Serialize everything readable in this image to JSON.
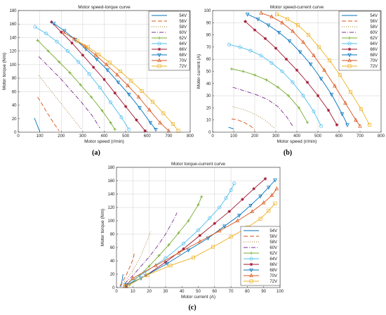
{
  "panels": [
    "(a)",
    "(b)",
    "(c)"
  ],
  "chart_data": [
    {
      "type": "line",
      "title": "Motor speed-torque curve",
      "xlabel": "Motor speed (r/min)",
      "ylabel": "Motor torque (Nm)",
      "xlim": [
        0,
        800
      ],
      "ylim": [
        0,
        180
      ],
      "xticks": [
        "0",
        "100",
        "200",
        "300",
        "400",
        "500",
        "600",
        "700",
        "800"
      ],
      "yticks": [
        "0",
        "20",
        "40",
        "60",
        "80",
        "100",
        "120",
        "140",
        "160",
        "180"
      ],
      "grid": "partial",
      "legend": "top-right",
      "series": [
        {
          "name": "54V",
          "x": [
            75,
            80,
            85,
            90,
            95,
            100
          ],
          "y": [
            21,
            17,
            13,
            9,
            5,
            1
          ]
        },
        {
          "name": "56V",
          "x": [
            90,
            110,
            130,
            150,
            170,
            190
          ],
          "y": [
            52,
            42,
            31,
            21,
            11,
            2
          ]
        },
        {
          "name": "58V",
          "x": [
            95,
            130,
            165,
            200,
            235,
            270,
            295
          ],
          "y": [
            84,
            70,
            56,
            42,
            28,
            14,
            4
          ]
        },
        {
          "name": "60V",
          "x": [
            95,
            145,
            195,
            245,
            295,
            345,
            380
          ],
          "y": [
            112,
            96,
            80,
            62,
            44,
            24,
            6
          ]
        },
        {
          "name": "62V",
          "x": [
            90,
            140,
            190,
            240,
            290,
            340,
            390,
            430,
            450
          ],
          "y": [
            136,
            120,
            104,
            88,
            70,
            52,
            32,
            14,
            4
          ]
        },
        {
          "name": "64V",
          "x": [
            78,
            130,
            180,
            230,
            280,
            330,
            380,
            430,
            480,
            515
          ],
          "y": [
            156,
            146,
            134,
            120,
            104,
            86,
            66,
            44,
            22,
            4
          ]
        },
        {
          "name": "66V",
          "x": [
            155,
            200,
            250,
            300,
            350,
            400,
            450,
            500,
            550,
            590
          ],
          "y": [
            163,
            148,
            132,
            114,
            96,
            78,
            58,
            38,
            18,
            2
          ]
        },
        {
          "name": "68V",
          "x": [
            165,
            215,
            265,
            315,
            365,
            415,
            465,
            515,
            565,
            615,
            640
          ],
          "y": [
            161,
            150,
            137,
            123,
            108,
            92,
            74,
            56,
            36,
            14,
            4
          ]
        },
        {
          "name": "70V",
          "x": [
            210,
            260,
            310,
            360,
            410,
            460,
            510,
            560,
            610,
            660,
            700
          ],
          "y": [
            148,
            138,
            127,
            114,
            100,
            85,
            69,
            52,
            33,
            14,
            2
          ]
        },
        {
          "name": "72V",
          "x": [
            275,
            325,
            375,
            425,
            475,
            525,
            575,
            625,
            675,
            720,
            745
          ],
          "y": [
            135,
            126,
            115,
            103,
            90,
            76,
            61,
            45,
            28,
            12,
            2
          ]
        }
      ]
    },
    {
      "type": "line",
      "title": "Motor speed-current curve",
      "xlabel": "Motor speed (r/min)",
      "ylabel": "Motor current (A)",
      "xlim": [
        0,
        800
      ],
      "ylim": [
        0,
        100
      ],
      "xticks": [
        "0",
        "100",
        "200",
        "300",
        "400",
        "500",
        "600",
        "700",
        "800"
      ],
      "yticks": [
        "0",
        "10",
        "20",
        "30",
        "40",
        "50",
        "60",
        "70",
        "80",
        "90",
        "100"
      ],
      "grid": "partial",
      "legend": "top-right",
      "series": [
        {
          "name": "54V",
          "x": [
            75,
            85,
            95,
            100
          ],
          "y": [
            4,
            3.5,
            3,
            2.5
          ]
        },
        {
          "name": "56V",
          "x": [
            90,
            120,
            150,
            180,
            200
          ],
          "y": [
            11,
            10,
            8,
            5,
            2
          ]
        },
        {
          "name": "58V",
          "x": [
            95,
            140,
            185,
            230,
            270,
            295
          ],
          "y": [
            21,
            19,
            16,
            12,
            7,
            3
          ]
        },
        {
          "name": "60V",
          "x": [
            95,
            150,
            205,
            260,
            310,
            350,
            380
          ],
          "y": [
            37,
            34,
            31,
            27,
            21,
            13,
            5
          ]
        },
        {
          "name": "62V",
          "x": [
            90,
            145,
            200,
            255,
            310,
            360,
            410,
            450
          ],
          "y": [
            52,
            50,
            47,
            43,
            37,
            30,
            20,
            8
          ]
        },
        {
          "name": "64V",
          "x": [
            78,
            130,
            180,
            230,
            280,
            330,
            380,
            430,
            480,
            515
          ],
          "y": [
            72,
            70,
            67,
            63,
            57,
            50,
            41,
            30,
            17,
            5
          ]
        },
        {
          "name": "66V",
          "x": [
            155,
            200,
            250,
            300,
            350,
            400,
            450,
            500,
            550,
            590
          ],
          "y": [
            91,
            84,
            77,
            69,
            60,
            51,
            41,
            30,
            18,
            6
          ]
        },
        {
          "name": "68V",
          "x": [
            165,
            215,
            265,
            315,
            365,
            415,
            465,
            515,
            565,
            615,
            640
          ],
          "y": [
            97,
            93,
            88,
            82,
            75,
            66,
            56,
            44,
            31,
            15,
            6
          ]
        },
        {
          "name": "70V",
          "x": [
            230,
            280,
            330,
            380,
            430,
            480,
            530,
            580,
            630,
            680,
            700
          ],
          "y": [
            98,
            95,
            90,
            83,
            74,
            63,
            51,
            38,
            24,
            10,
            5
          ]
        },
        {
          "name": "72V",
          "x": [
            305,
            355,
            405,
            455,
            505,
            555,
            605,
            655,
            705,
            745
          ],
          "y": [
            97,
            93,
            88,
            80,
            70,
            59,
            47,
            33,
            19,
            6
          ]
        }
      ]
    },
    {
      "type": "line",
      "title": "Motor torque-current curve",
      "xlabel": "Motor current (A)",
      "ylabel": "Motor torque (Nm)",
      "xlim": [
        0,
        100
      ],
      "ylim": [
        0,
        180
      ],
      "xticks": [
        "0",
        "10",
        "20",
        "30",
        "40",
        "50",
        "60",
        "70",
        "80",
        "90",
        "100"
      ],
      "yticks": [
        "0",
        "20",
        "40",
        "60",
        "80",
        "100",
        "120",
        "140",
        "160",
        "180"
      ],
      "grid": "partial",
      "legend": "right",
      "series": [
        {
          "name": "54V",
          "x": [
            2.5,
            3,
            3.5,
            4
          ],
          "y": [
            1,
            6,
            12,
            20
          ]
        },
        {
          "name": "56V",
          "x": [
            2,
            4,
            6,
            8,
            10,
            11
          ],
          "y": [
            2,
            10,
            19,
            30,
            42,
            52
          ]
        },
        {
          "name": "58V",
          "x": [
            3,
            6,
            9,
            12,
            15,
            18,
            21
          ],
          "y": [
            4,
            12,
            22,
            34,
            48,
            66,
            84
          ]
        },
        {
          "name": "60V",
          "x": [
            5,
            10,
            15,
            20,
            25,
            30,
            35,
            37
          ],
          "y": [
            6,
            18,
            32,
            46,
            62,
            80,
            102,
            112
          ]
        },
        {
          "name": "62V",
          "x": [
            8,
            14,
            20,
            26,
            32,
            38,
            44,
            50,
            52
          ],
          "y": [
            4,
            18,
            32,
            48,
            64,
            82,
            100,
            124,
            136
          ]
        },
        {
          "name": "64V",
          "x": [
            5,
            17,
            30,
            41,
            50,
            57,
            63,
            67,
            70,
            72
          ],
          "y": [
            4,
            22,
            44,
            66,
            86,
            104,
            120,
            134,
            146,
            156
          ]
        },
        {
          "name": "66V",
          "x": [
            6,
            18,
            30,
            41,
            51,
            60,
            69,
            77,
            84,
            91
          ],
          "y": [
            2,
            18,
            38,
            58,
            78,
            96,
            114,
            132,
            148,
            163
          ]
        },
        {
          "name": "68V",
          "x": [
            6,
            15,
            31,
            44,
            56,
            66,
            75,
            82,
            88,
            93,
            97
          ],
          "y": [
            4,
            14,
            36,
            56,
            74,
            92,
            108,
            123,
            137,
            150,
            161
          ]
        },
        {
          "name": "70V",
          "x": [
            5,
            10,
            24,
            38,
            51,
            63,
            74,
            83,
            90,
            95,
            98
          ],
          "y": [
            2,
            14,
            33,
            52,
            69,
            85,
            100,
            114,
            127,
            138,
            148
          ]
        },
        {
          "name": "72V",
          "x": [
            6,
            19,
            33,
            47,
            59,
            70,
            80,
            88,
            93,
            97
          ],
          "y": [
            2,
            19,
            33,
            45,
            61,
            76,
            90,
            103,
            115,
            126
          ]
        }
      ]
    }
  ],
  "styles": [
    {
      "color": "#0072bd",
      "dash": "",
      "marker": "none"
    },
    {
      "color": "#d95319",
      "dash": "6 3",
      "marker": "none"
    },
    {
      "color": "#a07b2a",
      "dash": "1 2",
      "marker": "none"
    },
    {
      "color": "#7e2f8e",
      "dash": "6 2 1 2",
      "marker": "none"
    },
    {
      "color": "#77ac30",
      "dash": "",
      "marker": "plus"
    },
    {
      "color": "#4dbeee",
      "dash": "",
      "marker": "circle"
    },
    {
      "color": "#a2142f",
      "dash": "",
      "marker": "star"
    },
    {
      "color": "#0072bd",
      "dash": "",
      "marker": "triangle-down"
    },
    {
      "color": "#d95319",
      "dash": "",
      "marker": "triangle-up"
    },
    {
      "color": "#edb120",
      "dash": "",
      "marker": "square"
    }
  ]
}
